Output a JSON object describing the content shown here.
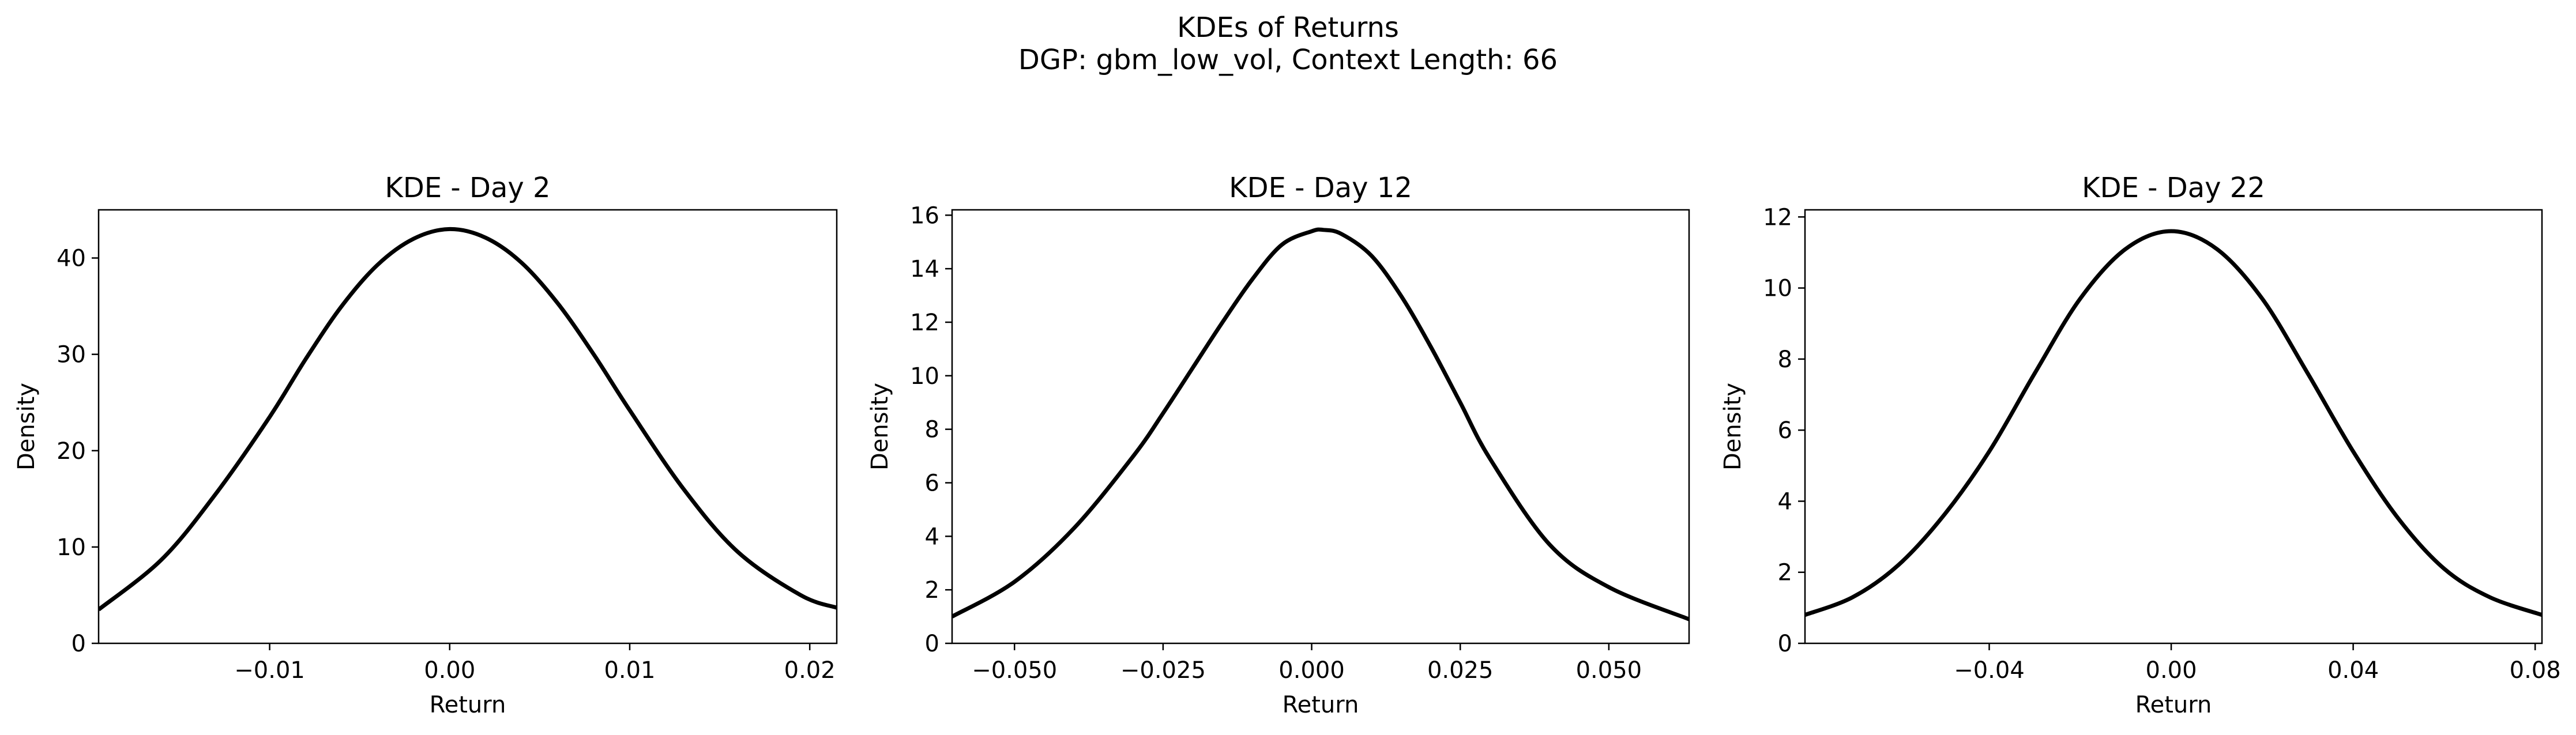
{
  "figure": {
    "title_line1": "KDEs of Returns",
    "title_line2": "DGP: gbm_low_vol, Context Length: 66"
  },
  "chart_data": [
    {
      "type": "line",
      "title": "KDE - Day 2",
      "xlabel": "Return",
      "ylabel": "Density",
      "xlim": [
        -0.0195,
        0.0215
      ],
      "ylim": [
        0,
        45
      ],
      "xticks": [
        -0.01,
        0.0,
        0.01,
        0.02
      ],
      "xtick_labels": [
        "−0.01",
        "0.00",
        "0.01",
        "0.02"
      ],
      "yticks": [
        0,
        10,
        20,
        30,
        40
      ],
      "ytick_labels": [
        "0",
        "10",
        "20",
        "30",
        "40"
      ],
      "grid": false,
      "series": [
        {
          "color": "#000000",
          "x": [
            -0.0195,
            -0.016,
            -0.013,
            -0.01,
            -0.008,
            -0.006,
            -0.004,
            -0.002,
            0.0,
            0.002,
            0.004,
            0.006,
            0.008,
            0.01,
            0.013,
            0.016,
            0.0195,
            0.0215
          ],
          "y": [
            3.5,
            8.7,
            15.5,
            23.5,
            29.5,
            35.0,
            39.3,
            42.0,
            43.0,
            42.1,
            39.5,
            35.3,
            30.0,
            24.2,
            16.0,
            9.5,
            5.0,
            3.7
          ]
        }
      ]
    },
    {
      "type": "line",
      "title": "KDE - Day 12",
      "xlabel": "Return",
      "ylabel": "Density",
      "xlim": [
        -0.0605,
        0.0635
      ],
      "ylim": [
        0,
        16.2
      ],
      "xticks": [
        -0.05,
        -0.025,
        0.0,
        0.025,
        0.05
      ],
      "xtick_labels": [
        "−0.050",
        "−0.025",
        "0.000",
        "0.025",
        "0.050"
      ],
      "yticks": [
        0,
        2,
        4,
        6,
        8,
        10,
        12,
        14,
        16
      ],
      "ytick_labels": [
        "0",
        "2",
        "4",
        "6",
        "8",
        "10",
        "12",
        "14",
        "16"
      ],
      "grid": false,
      "series": [
        {
          "color": "#000000",
          "x": [
            -0.0605,
            -0.05,
            -0.04,
            -0.03,
            -0.025,
            -0.02,
            -0.015,
            -0.01,
            -0.005,
            0.0,
            0.002,
            0.005,
            0.01,
            0.015,
            0.02,
            0.025,
            0.03,
            0.04,
            0.05,
            0.0635
          ],
          "y": [
            1.0,
            2.3,
            4.3,
            7.0,
            8.6,
            10.3,
            12.0,
            13.6,
            14.9,
            15.4,
            15.45,
            15.3,
            14.5,
            13.0,
            11.1,
            9.0,
            6.9,
            3.7,
            2.1,
            0.9
          ]
        }
      ]
    },
    {
      "type": "line",
      "title": "KDE - Day 22",
      "xlabel": "Return",
      "ylabel": "Density",
      "xlim": [
        -0.0805,
        0.0815
      ],
      "ylim": [
        0,
        12.2
      ],
      "xticks": [
        -0.04,
        0.0,
        0.04,
        0.08
      ],
      "xtick_labels": [
        "−0.04",
        "0.00",
        "0.04",
        "0.08"
      ],
      "yticks": [
        0,
        2,
        4,
        6,
        8,
        10,
        12
      ],
      "ytick_labels": [
        "0",
        "2",
        "4",
        "6",
        "8",
        "10",
        "12"
      ],
      "grid": false,
      "series": [
        {
          "color": "#000000",
          "x": [
            -0.0805,
            -0.07,
            -0.06,
            -0.05,
            -0.04,
            -0.03,
            -0.02,
            -0.01,
            0.0,
            0.01,
            0.02,
            0.03,
            0.04,
            0.05,
            0.06,
            0.07,
            0.0815
          ],
          "y": [
            0.8,
            1.3,
            2.2,
            3.6,
            5.4,
            7.6,
            9.7,
            11.1,
            11.6,
            11.1,
            9.7,
            7.6,
            5.4,
            3.5,
            2.1,
            1.3,
            0.8
          ]
        }
      ]
    }
  ]
}
